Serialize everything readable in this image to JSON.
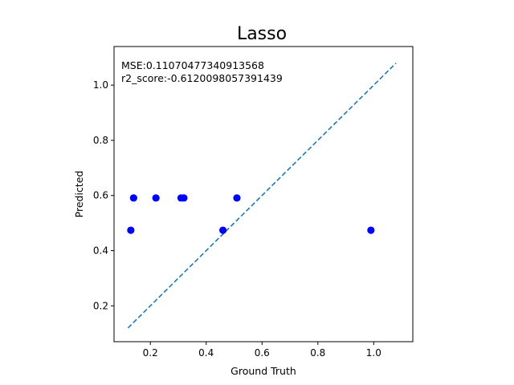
{
  "chart_data": {
    "type": "scatter",
    "title": "Lasso",
    "xlabel": "Ground Truth",
    "ylabel": "Predicted",
    "xlim": [
      0.07,
      1.14
    ],
    "ylim": [
      0.07,
      1.14
    ],
    "x_ticks": [
      0.2,
      0.4,
      0.6,
      0.8,
      1.0
    ],
    "y_ticks": [
      0.2,
      0.4,
      0.6,
      0.8,
      1.0
    ],
    "x_tick_labels": [
      "0.2",
      "0.4",
      "0.6",
      "0.8",
      "1.0"
    ],
    "y_tick_labels": [
      "0.2",
      "0.4",
      "0.6",
      "0.8",
      "1.0"
    ],
    "grid": false,
    "series": [
      {
        "marker_color": "#0000ff",
        "points": [
          {
            "x": 0.13,
            "y": 0.474
          },
          {
            "x": 0.14,
            "y": 0.591
          },
          {
            "x": 0.22,
            "y": 0.591
          },
          {
            "x": 0.31,
            "y": 0.591
          },
          {
            "x": 0.32,
            "y": 0.591
          },
          {
            "x": 0.46,
            "y": 0.474
          },
          {
            "x": 0.51,
            "y": 0.591
          },
          {
            "x": 0.99,
            "y": 0.474
          }
        ]
      }
    ],
    "reference_line": {
      "style": "dashed",
      "color": "#1f77b4",
      "x": [
        0.12,
        1.08
      ],
      "y": [
        0.12,
        1.08
      ]
    },
    "annotations": [
      "MSE:0.11070477340913568",
      "r2_score:-0.6120098057391439"
    ]
  }
}
